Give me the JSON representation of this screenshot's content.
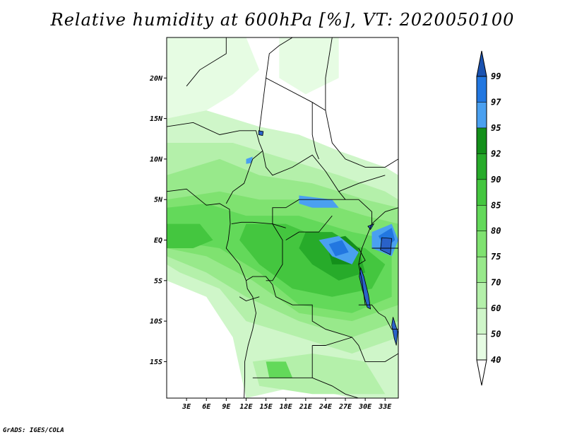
{
  "title": "Relative humidity at 600hPa [%], VT: 2020050100",
  "credit": "GrADS: IGES/COLA",
  "map": {
    "lon_range": [
      0,
      35
    ],
    "lat_range": [
      -19.5,
      25
    ],
    "lat_ticks": [
      {
        "value": 20,
        "label": "20N"
      },
      {
        "value": 15,
        "label": "15N"
      },
      {
        "value": 10,
        "label": "10N"
      },
      {
        "value": 5,
        "label": "5N"
      },
      {
        "value": 0,
        "label": "EQ"
      },
      {
        "value": -5,
        "label": "5S"
      },
      {
        "value": -10,
        "label": "10S"
      },
      {
        "value": -15,
        "label": "15S"
      }
    ],
    "lon_ticks": [
      {
        "value": 3,
        "label": "3E"
      },
      {
        "value": 6,
        "label": "6E"
      },
      {
        "value": 9,
        "label": "9E"
      },
      {
        "value": 12,
        "label": "12E"
      },
      {
        "value": 15,
        "label": "15E"
      },
      {
        "value": 18,
        "label": "18E"
      },
      {
        "value": 21,
        "label": "21E"
      },
      {
        "value": 24,
        "label": "24E"
      },
      {
        "value": 27,
        "label": "27E"
      },
      {
        "value": 30,
        "label": "30E"
      },
      {
        "value": 33,
        "label": "33E"
      }
    ]
  },
  "colorbar": {
    "levels": [
      {
        "label": "40",
        "color": "#e6fce3"
      },
      {
        "label": "50",
        "color": "#cff6c9"
      },
      {
        "label": "60",
        "color": "#b4f0aa"
      },
      {
        "label": "70",
        "color": "#98e98b"
      },
      {
        "label": "75",
        "color": "#7fe270"
      },
      {
        "label": "80",
        "color": "#63d95a"
      },
      {
        "label": "85",
        "color": "#44c63f"
      },
      {
        "label": "90",
        "color": "#27ab2a"
      },
      {
        "label": "92",
        "color": "#138f1a"
      },
      {
        "label": "95",
        "color": "#4aa0f0"
      },
      {
        "label": "97",
        "color": "#2277e0"
      },
      {
        "label": "99",
        "color": "#1b5fc4"
      }
    ],
    "below_color": "#ffffff",
    "above_color": "#1a52b0"
  },
  "humidity_regions": [
    {
      "level": 40,
      "points": [
        [
          0,
          25
        ],
        [
          12,
          25
        ],
        [
          14,
          21
        ],
        [
          10,
          18
        ],
        [
          6,
          16
        ],
        [
          0,
          15
        ]
      ]
    },
    {
      "level": 40,
      "points": [
        [
          17,
          25
        ],
        [
          26,
          25
        ],
        [
          26,
          20
        ],
        [
          21,
          18
        ],
        [
          17,
          20
        ]
      ]
    },
    {
      "level": 50,
      "points": [
        [
          0,
          15
        ],
        [
          6,
          16
        ],
        [
          14,
          14
        ],
        [
          20,
          13
        ],
        [
          26,
          11
        ],
        [
          33,
          9
        ],
        [
          35,
          8
        ],
        [
          35,
          -19.5
        ],
        [
          28,
          -19.5
        ],
        [
          20,
          -18
        ],
        [
          12,
          -19.5
        ],
        [
          10,
          -12
        ],
        [
          6,
          -7
        ],
        [
          0,
          -5
        ]
      ]
    },
    {
      "level": 60,
      "points": [
        [
          0,
          12
        ],
        [
          10,
          12
        ],
        [
          18,
          10
        ],
        [
          26,
          8
        ],
        [
          33,
          6
        ],
        [
          35,
          5
        ],
        [
          35,
          -12
        ],
        [
          28,
          -14
        ],
        [
          20,
          -12
        ],
        [
          12,
          -10
        ],
        [
          8,
          -6
        ],
        [
          2,
          -4
        ],
        [
          0,
          -3
        ]
      ]
    },
    {
      "level": 60,
      "points": [
        [
          13,
          -15
        ],
        [
          22,
          -14
        ],
        [
          30,
          -15
        ],
        [
          33,
          -19
        ],
        [
          22,
          -19
        ],
        [
          14,
          -18
        ]
      ]
    },
    {
      "level": 70,
      "points": [
        [
          0,
          8
        ],
        [
          8,
          10
        ],
        [
          14,
          8
        ],
        [
          22,
          7
        ],
        [
          30,
          5
        ],
        [
          35,
          4
        ],
        [
          35,
          -10
        ],
        [
          28,
          -12
        ],
        [
          20,
          -10
        ],
        [
          12,
          -7
        ],
        [
          6,
          -4
        ],
        [
          0,
          -2
        ]
      ]
    },
    {
      "level": 75,
      "points": [
        [
          0,
          5
        ],
        [
          8,
          6
        ],
        [
          14,
          5
        ],
        [
          22,
          5
        ],
        [
          30,
          3
        ],
        [
          35,
          2
        ],
        [
          35,
          -8
        ],
        [
          28,
          -10
        ],
        [
          20,
          -9
        ],
        [
          13,
          -5
        ],
        [
          6,
          -2
        ],
        [
          0,
          -1
        ]
      ]
    },
    {
      "level": 80,
      "points": [
        [
          0,
          4
        ],
        [
          6,
          4.5
        ],
        [
          12,
          3
        ],
        [
          20,
          3
        ],
        [
          28,
          1
        ],
        [
          34,
          0
        ],
        [
          34,
          -7
        ],
        [
          28,
          -9
        ],
        [
          20,
          -8
        ],
        [
          14,
          -4
        ],
        [
          8,
          -1
        ],
        [
          0,
          0
        ]
      ]
    },
    {
      "level": 80,
      "points": [
        [
          15,
          -15
        ],
        [
          18,
          -15
        ],
        [
          19,
          -17
        ],
        [
          15.5,
          -17
        ]
      ]
    },
    {
      "level": 85,
      "points": [
        [
          12,
          2
        ],
        [
          18,
          2
        ],
        [
          24,
          0
        ],
        [
          30,
          -1
        ],
        [
          33,
          -3
        ],
        [
          31,
          -6
        ],
        [
          25,
          -7
        ],
        [
          19,
          -6
        ],
        [
          14,
          -3
        ],
        [
          11,
          0
        ]
      ]
    },
    {
      "level": 85,
      "points": [
        [
          0,
          2
        ],
        [
          5,
          2
        ],
        [
          7,
          0
        ],
        [
          4,
          -1
        ],
        [
          0,
          -1
        ]
      ]
    },
    {
      "level": 90,
      "points": [
        [
          21,
          1
        ],
        [
          25,
          1
        ],
        [
          29,
          -1
        ],
        [
          30,
          -4
        ],
        [
          26,
          -5
        ],
        [
          22,
          -3
        ],
        [
          20,
          -1
        ]
      ]
    },
    {
      "level": 92,
      "points": [
        [
          24,
          0
        ],
        [
          27,
          0.5
        ],
        [
          29,
          -1
        ],
        [
          28,
          -3
        ],
        [
          25,
          -3
        ]
      ]
    },
    {
      "level": 95,
      "points": [
        [
          23,
          0
        ],
        [
          26,
          0.5
        ],
        [
          29,
          -1.5
        ],
        [
          28,
          -3
        ],
        [
          25,
          -2
        ]
      ]
    },
    {
      "level": 95,
      "points": [
        [
          31,
          1
        ],
        [
          34,
          2
        ],
        [
          35,
          0
        ],
        [
          34,
          -2
        ],
        [
          31,
          -1
        ]
      ]
    },
    {
      "level": 95,
      "points": [
        [
          20,
          5.5
        ],
        [
          25,
          5
        ],
        [
          26,
          4
        ],
        [
          22,
          4
        ],
        [
          20,
          4.5
        ]
      ]
    },
    {
      "level": 95,
      "points": [
        [
          12,
          10
        ],
        [
          13,
          10.3
        ],
        [
          12.8,
          9.5
        ],
        [
          12,
          9.4
        ]
      ]
    },
    {
      "level": 97,
      "points": [
        [
          32,
          0.5
        ],
        [
          34,
          1.5
        ],
        [
          34.5,
          0
        ],
        [
          33,
          -1
        ]
      ]
    },
    {
      "level": 97,
      "points": [
        [
          24.5,
          -0.5
        ],
        [
          26.5,
          0
        ],
        [
          27.5,
          -1.5
        ],
        [
          25.5,
          -2
        ]
      ]
    }
  ],
  "boundaries": [
    {
      "points": [
        [
          0,
          6
        ],
        [
          3,
          6.3
        ],
        [
          6,
          4.3
        ],
        [
          8,
          4.5
        ],
        [
          9.5,
          3.8
        ],
        [
          9.6,
          2
        ],
        [
          9.3,
          0
        ],
        [
          9,
          -1
        ],
        [
          11,
          -3
        ],
        [
          12,
          -5
        ],
        [
          12.2,
          -6
        ],
        [
          13,
          -7
        ],
        [
          13.5,
          -9
        ],
        [
          13,
          -11
        ],
        [
          12.3,
          -13
        ],
        [
          11.8,
          -15
        ],
        [
          11.8,
          -17
        ],
        [
          11.7,
          -19.5
        ]
      ]
    },
    {
      "points": [
        [
          0,
          14
        ],
        [
          4,
          14.5
        ],
        [
          8,
          13
        ],
        [
          11,
          13.5
        ],
        [
          13.5,
          13.5
        ],
        [
          14,
          12
        ],
        [
          14.5,
          11
        ]
      ]
    },
    {
      "points": [
        [
          14.5,
          11
        ],
        [
          13,
          10
        ],
        [
          11.7,
          7
        ],
        [
          10,
          6
        ],
        [
          9,
          4.5
        ]
      ]
    },
    {
      "points": [
        [
          14.5,
          11
        ],
        [
          15,
          9
        ],
        [
          16,
          8
        ],
        [
          19,
          9
        ],
        [
          22,
          10.5
        ],
        [
          23.5,
          9
        ],
        [
          24,
          8.5
        ],
        [
          26,
          6
        ],
        [
          27,
          5
        ],
        [
          29,
          5
        ],
        [
          31,
          3.5
        ],
        [
          31,
          2
        ],
        [
          30,
          0
        ],
        [
          29.5,
          -1
        ],
        [
          29,
          -3
        ],
        [
          29.5,
          -5
        ],
        [
          30,
          -8
        ]
      ]
    },
    {
      "points": [
        [
          14,
          13.5
        ],
        [
          15,
          20
        ],
        [
          15.5,
          23
        ],
        [
          17,
          24
        ],
        [
          19,
          25
        ]
      ]
    },
    {
      "points": [
        [
          9,
          25
        ],
        [
          9,
          23
        ],
        [
          5,
          21
        ],
        [
          3,
          19
        ]
      ]
    },
    {
      "points": [
        [
          15,
          20
        ],
        [
          22,
          17
        ],
        [
          24,
          16
        ],
        [
          24,
          20
        ],
        [
          25,
          25
        ]
      ]
    },
    {
      "points": [
        [
          22,
          17
        ],
        [
          22,
          13
        ],
        [
          22.5,
          11
        ],
        [
          23,
          10
        ]
      ]
    },
    {
      "points": [
        [
          24,
          16
        ],
        [
          25,
          12
        ],
        [
          27,
          10
        ],
        [
          30,
          9
        ],
        [
          33,
          9
        ],
        [
          35,
          10
        ]
      ]
    },
    {
      "points": [
        [
          26,
          6
        ],
        [
          29,
          7
        ],
        [
          33,
          8
        ]
      ]
    },
    {
      "points": [
        [
          16,
          2
        ],
        [
          16,
          4
        ],
        [
          18,
          4
        ],
        [
          20,
          5
        ],
        [
          24,
          5
        ],
        [
          27,
          5
        ]
      ]
    },
    {
      "points": [
        [
          9.8,
          2
        ],
        [
          11.3,
          2.2
        ],
        [
          13,
          2.2
        ],
        [
          16,
          2
        ],
        [
          18,
          1.5
        ]
      ]
    },
    {
      "points": [
        [
          16,
          2
        ],
        [
          17.5,
          0
        ],
        [
          17.5,
          -3
        ],
        [
          16,
          -5
        ],
        [
          15,
          -5
        ]
      ]
    },
    {
      "points": [
        [
          12,
          -5
        ],
        [
          13,
          -4.5
        ],
        [
          15,
          -4.5
        ],
        [
          16,
          -5.5
        ],
        [
          16.5,
          -7
        ],
        [
          19,
          -8
        ],
        [
          22,
          -8
        ],
        [
          22,
          -10
        ],
        [
          24,
          -11
        ],
        [
          26,
          -11.5
        ],
        [
          28,
          -12
        ]
      ]
    },
    {
      "points": [
        [
          13,
          -17
        ],
        [
          16,
          -17
        ],
        [
          19,
          -17
        ],
        [
          22,
          -17
        ],
        [
          25,
          -18
        ],
        [
          27,
          -19
        ],
        [
          29,
          -19.5
        ]
      ]
    },
    {
      "points": [
        [
          22,
          -13
        ],
        [
          22,
          -17
        ]
      ]
    },
    {
      "points": [
        [
          22,
          -13
        ],
        [
          24,
          -13
        ],
        [
          28,
          -12
        ],
        [
          29,
          -13
        ],
        [
          30,
          -15
        ],
        [
          33,
          -15
        ],
        [
          35,
          -14
        ]
      ]
    },
    {
      "points": [
        [
          29,
          -8
        ],
        [
          31,
          -8
        ],
        [
          32,
          -9
        ],
        [
          33,
          -9.5
        ],
        [
          34,
          -11
        ],
        [
          35,
          -11
        ]
      ]
    },
    {
      "points": [
        [
          31,
          2
        ],
        [
          33,
          3.5
        ],
        [
          35,
          4
        ]
      ]
    },
    {
      "points": [
        [
          31,
          -1
        ],
        [
          33,
          -1
        ],
        [
          35,
          -1
        ]
      ]
    },
    {
      "points": [
        [
          29,
          -1
        ],
        [
          30,
          -2.5
        ],
        [
          29,
          -3
        ]
      ]
    },
    {
      "points": [
        [
          18,
          0
        ],
        [
          20,
          1
        ],
        [
          23,
          1
        ],
        [
          25,
          3
        ]
      ]
    },
    {
      "points": [
        [
          11,
          -7
        ],
        [
          12,
          -7.5
        ],
        [
          14,
          -7
        ]
      ]
    }
  ],
  "water_bodies": [
    {
      "points": [
        [
          32.5,
          0.3
        ],
        [
          34,
          0.2
        ],
        [
          33.8,
          -1.8
        ],
        [
          32.3,
          -1.2
        ]
      ]
    },
    {
      "points": [
        [
          29.3,
          -3.4
        ],
        [
          29.8,
          -4.5
        ],
        [
          30.5,
          -6.8
        ],
        [
          30.8,
          -8.5
        ],
        [
          30.3,
          -8.3
        ],
        [
          29.6,
          -6.2
        ],
        [
          29.1,
          -4.5
        ]
      ]
    },
    {
      "points": [
        [
          30.4,
          1.7
        ],
        [
          31.3,
          2
        ],
        [
          30.8,
          1.3
        ]
      ]
    },
    {
      "points": [
        [
          34.2,
          -9.5
        ],
        [
          34.9,
          -11.3
        ],
        [
          34.7,
          -13
        ],
        [
          34.4,
          -12.2
        ],
        [
          34,
          -10.5
        ]
      ]
    },
    {
      "points": [
        [
          13.9,
          13.5
        ],
        [
          14.6,
          13.4
        ],
        [
          14.5,
          12.9
        ],
        [
          13.9,
          13
        ]
      ]
    }
  ]
}
